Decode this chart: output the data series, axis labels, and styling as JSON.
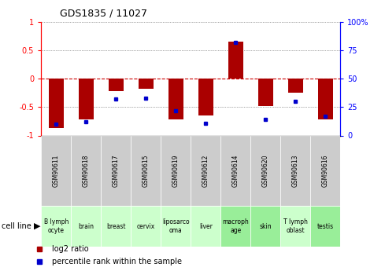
{
  "title": "GDS1835 / 11027",
  "samples": [
    "GSM90611",
    "GSM90618",
    "GSM90617",
    "GSM90615",
    "GSM90619",
    "GSM90612",
    "GSM90614",
    "GSM90620",
    "GSM90613",
    "GSM90616"
  ],
  "cell_lines": [
    "B lymph\nocyte",
    "brain",
    "breast",
    "cervix",
    "liposarco\noma",
    "liver",
    "macroph\nage",
    "skin",
    "T lymph\noblast",
    "testis"
  ],
  "cell_line_colors": [
    "#ccffcc",
    "#ccffcc",
    "#ccffcc",
    "#ccffcc",
    "#ccffcc",
    "#ccffcc",
    "#99ee99",
    "#99ee99",
    "#ccffcc",
    "#99ee99"
  ],
  "gsm_box_color": "#cccccc",
  "log2_ratio": [
    -0.87,
    -0.72,
    -0.22,
    -0.18,
    -0.72,
    -0.65,
    0.65,
    -0.48,
    -0.25,
    -0.72
  ],
  "percentile_rank": [
    10,
    12,
    32,
    33,
    22,
    11,
    82,
    14,
    30,
    17
  ],
  "ylim_left": [
    -1,
    1
  ],
  "ylim_right": [
    0,
    100
  ],
  "bar_color": "#aa0000",
  "dot_color": "#0000cc",
  "grid_color": "#000000",
  "zero_line_color": "#cc0000",
  "left_yticks": [
    -1,
    -0.5,
    0,
    0.5,
    1
  ],
  "right_yticks": [
    0,
    25,
    50,
    75,
    100
  ],
  "left_yticklabels": [
    "-1",
    "-0.5",
    "0",
    "0.5",
    "1"
  ],
  "right_yticklabels": [
    "0",
    "25",
    "50",
    "75",
    "100%"
  ],
  "legend_log2": "log2 ratio",
  "legend_pct": "percentile rank within the sample",
  "cell_line_label": "cell line"
}
